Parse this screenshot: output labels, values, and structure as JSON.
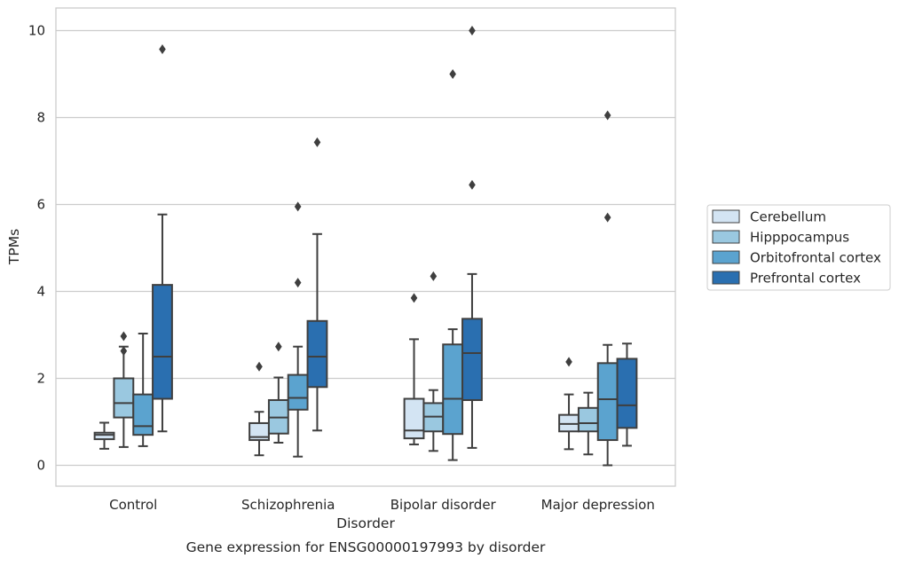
{
  "chart_data": {
    "type": "box",
    "title": "",
    "caption": "Gene expression for ENSG00000197993 by disorder",
    "xlabel": "Disorder",
    "ylabel": "TPMs",
    "ylim": [
      -0.48,
      10.52
    ],
    "yticks": [
      0,
      2,
      4,
      6,
      8,
      10
    ],
    "grid": "horizontal",
    "legend_position": "right",
    "categories": [
      "Control",
      "Schizophrenia",
      "Bipolar disorder",
      "Major depression"
    ],
    "series": [
      {
        "name": "Cerebellum",
        "color": "#d3e4f3",
        "boxes": [
          {
            "whislo": 0.38,
            "q1": 0.6,
            "med": 0.7,
            "q3": 0.75,
            "whishi": 0.98,
            "fliers": []
          },
          {
            "whislo": 0.23,
            "q1": 0.58,
            "med": 0.65,
            "q3": 0.97,
            "whishi": 1.23,
            "fliers": [
              2.27
            ]
          },
          {
            "whislo": 0.48,
            "q1": 0.62,
            "med": 0.8,
            "q3": 1.53,
            "whishi": 2.9,
            "fliers": [
              3.85
            ]
          },
          {
            "whislo": 0.37,
            "q1": 0.78,
            "med": 0.95,
            "q3": 1.16,
            "whishi": 1.63,
            "fliers": [
              2.38
            ]
          }
        ]
      },
      {
        "name": "Hipppocampus",
        "color": "#9ac8e0",
        "boxes": [
          {
            "whislo": 0.42,
            "q1": 1.1,
            "med": 1.43,
            "q3": 2.0,
            "whishi": 2.73,
            "fliers": [
              2.63,
              2.97
            ]
          },
          {
            "whislo": 0.52,
            "q1": 0.73,
            "med": 1.1,
            "q3": 1.5,
            "whishi": 2.02,
            "fliers": [
              2.73
            ]
          },
          {
            "whislo": 0.33,
            "q1": 0.78,
            "med": 1.12,
            "q3": 1.43,
            "whishi": 1.73,
            "fliers": [
              4.35
            ]
          },
          {
            "whislo": 0.25,
            "q1": 0.78,
            "med": 0.97,
            "q3": 1.32,
            "whishi": 1.67,
            "fliers": []
          }
        ]
      },
      {
        "name": "Orbitofrontal cortex",
        "color": "#5ba3cf",
        "boxes": [
          {
            "whislo": 0.44,
            "q1": 0.7,
            "med": 0.9,
            "q3": 1.63,
            "whishi": 3.03,
            "fliers": []
          },
          {
            "whislo": 0.2,
            "q1": 1.28,
            "med": 1.55,
            "q3": 2.08,
            "whishi": 2.73,
            "fliers": [
              4.2,
              5.95
            ]
          },
          {
            "whislo": 0.12,
            "q1": 0.72,
            "med": 1.53,
            "q3": 2.78,
            "whishi": 3.13,
            "fliers": [
              9.0
            ]
          },
          {
            "whislo": 0.0,
            "q1": 0.58,
            "med": 1.52,
            "q3": 2.35,
            "whishi": 2.77,
            "fliers": [
              5.7,
              8.05
            ]
          }
        ]
      },
      {
        "name": "Prefrontal cortex",
        "color": "#2a6fb0",
        "boxes": [
          {
            "whislo": 0.78,
            "q1": 1.53,
            "med": 2.5,
            "q3": 4.15,
            "whishi": 5.77,
            "fliers": [
              9.57
            ]
          },
          {
            "whislo": 0.8,
            "q1": 1.8,
            "med": 2.5,
            "q3": 3.32,
            "whishi": 5.32,
            "fliers": [
              7.43
            ]
          },
          {
            "whislo": 0.4,
            "q1": 1.5,
            "med": 2.58,
            "q3": 3.37,
            "whishi": 4.4,
            "fliers": [
              6.45,
              10.0
            ]
          },
          {
            "whislo": 0.45,
            "q1": 0.86,
            "med": 1.38,
            "q3": 2.45,
            "whishi": 2.8,
            "fliers": []
          }
        ]
      }
    ]
  }
}
